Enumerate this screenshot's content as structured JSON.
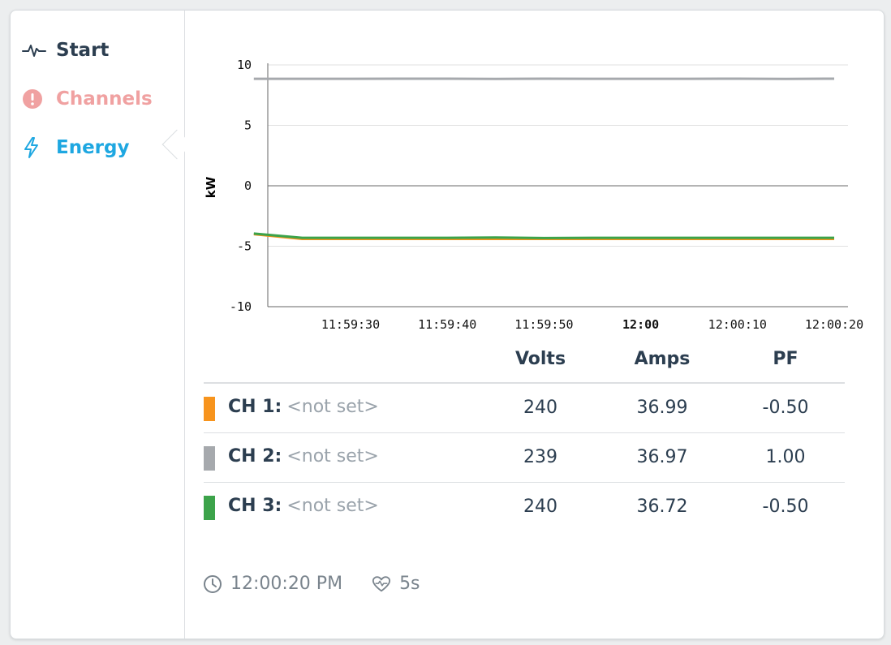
{
  "nav": {
    "items": [
      {
        "label": "Start",
        "icon": "pulse-icon",
        "color": "#2c3e50"
      },
      {
        "label": "Channels",
        "icon": "alert-circle-icon",
        "color": "#f0a1a1"
      },
      {
        "label": "Energy",
        "icon": "lightning-icon",
        "color": "#1ea7e1"
      }
    ],
    "active": "Energy"
  },
  "chart_data": {
    "type": "line",
    "ylabel": "kW",
    "xlabel": "",
    "title": "",
    "ylim": [
      -10,
      10
    ],
    "yticks": [
      "10",
      "5",
      "0",
      "-5",
      "-10"
    ],
    "xticks": [
      "11:59:30",
      "11:59:40",
      "11:59:50",
      "12:00",
      "12:00:10",
      "12:00:20"
    ],
    "x_seconds": [
      20,
      25,
      30,
      35,
      40,
      45,
      50,
      55,
      60,
      65,
      70,
      75,
      80
    ],
    "series": [
      {
        "channel": "CH 1",
        "color": "#f7941d",
        "values": [
          -4.0,
          -4.4,
          -4.4,
          -4.4,
          -4.4,
          -4.4,
          -4.4,
          -4.4,
          -4.4,
          -4.4,
          -4.4,
          -4.4,
          -4.4
        ]
      },
      {
        "channel": "CH 2",
        "color": "#a6a9ad",
        "values": [
          8.85,
          8.85,
          8.85,
          8.86,
          8.86,
          8.84,
          8.86,
          8.85,
          8.85,
          8.85,
          8.86,
          8.84,
          8.86
        ]
      },
      {
        "channel": "CH 3",
        "color": "#3ca34a",
        "values": [
          -3.95,
          -4.3,
          -4.3,
          -4.3,
          -4.3,
          -4.28,
          -4.32,
          -4.3,
          -4.3,
          -4.3,
          -4.3,
          -4.3,
          -4.3
        ]
      }
    ],
    "grid": true
  },
  "table": {
    "headers": {
      "volts": "Volts",
      "amps": "Amps",
      "pf": "PF"
    },
    "rows": [
      {
        "channel": "CH 1:",
        "name": "<not set>",
        "color": "#f7941d",
        "volts": "240",
        "amps": "36.99",
        "pf": "-0.50"
      },
      {
        "channel": "CH 2:",
        "name": "<not set>",
        "color": "#a6a9ad",
        "volts": "239",
        "amps": "36.97",
        "pf": "1.00"
      },
      {
        "channel": "CH 3:",
        "name": "<not set>",
        "color": "#3ca34a",
        "volts": "240",
        "amps": "36.72",
        "pf": "-0.50"
      }
    ]
  },
  "status": {
    "time": "12:00:20 PM",
    "time_icon": "clock-icon",
    "interval": "5s",
    "interval_icon": "heartbeat-icon"
  }
}
